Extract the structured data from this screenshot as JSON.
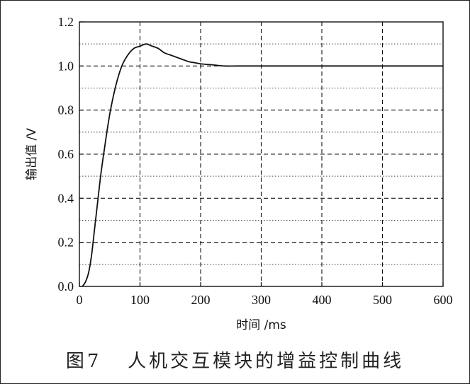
{
  "chart_data": {
    "type": "line",
    "xlabel": "时间  /ms",
    "ylabel": "输出值 /V",
    "xlim": [
      0,
      600
    ],
    "ylim": [
      0,
      1.2
    ],
    "x_ticks": [
      0,
      100,
      200,
      300,
      400,
      500,
      600
    ],
    "y_ticks": [
      0.0,
      0.2,
      0.4,
      0.6,
      0.8,
      1.0,
      1.2
    ],
    "x_tick_labels": [
      "0",
      "100",
      "200",
      "300",
      "400",
      "500",
      "600"
    ],
    "y_tick_labels": [
      "0.0",
      "0.2",
      "0.4",
      "0.6",
      "0.8",
      "1.0",
      "1.2"
    ],
    "grid": true,
    "grid_major_style": "dashed",
    "grid_minor_style": "dotted",
    "y_minor_ticks": [
      0.1,
      0.3,
      0.5,
      0.7,
      0.9,
      1.1
    ],
    "series": [
      {
        "color": "#111111",
        "x": [
          5,
          10,
          15,
          20,
          25,
          30,
          35,
          40,
          50,
          60,
          70,
          80,
          90,
          100,
          110,
          120,
          130,
          140,
          150,
          160,
          170,
          180,
          190,
          200,
          220,
          240,
          260,
          300,
          400,
          500,
          600
        ],
        "y": [
          0.0,
          0.02,
          0.06,
          0.14,
          0.26,
          0.38,
          0.5,
          0.6,
          0.78,
          0.91,
          1.0,
          1.05,
          1.08,
          1.09,
          1.1,
          1.09,
          1.08,
          1.06,
          1.05,
          1.04,
          1.03,
          1.02,
          1.015,
          1.01,
          1.005,
          1.0,
          1.0,
          1.0,
          1.0,
          1.0,
          1.0
        ]
      }
    ]
  },
  "caption": {
    "figure_no": "图7",
    "title": "人机交互模块的增益控制曲线"
  }
}
